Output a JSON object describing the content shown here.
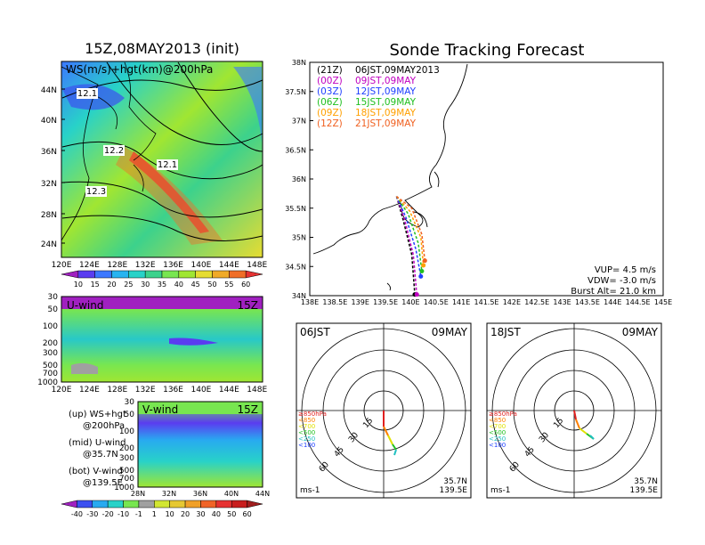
{
  "titles": {
    "left": "15Z,08MAY2013 (init)",
    "right": "Sonde Tracking Forecast"
  },
  "panel_ws": {
    "label": "WS(m/s)+hgt(km)@200hPa",
    "lat_ticks": [
      "44N",
      "40N",
      "36N",
      "32N",
      "28N",
      "24N"
    ],
    "lon_ticks": [
      "120E",
      "124E",
      "128E",
      "132E",
      "136E",
      "140E",
      "144E",
      "148E"
    ],
    "contour_labels": [
      "12.1",
      "12.2",
      "12.1",
      "12.3"
    ],
    "colorbar_ticks": [
      "10",
      "15",
      "20",
      "25",
      "30",
      "35",
      "40",
      "45",
      "50",
      "55",
      "60"
    ],
    "colorbar_colors": [
      "#a020c0",
      "#5a3cf0",
      "#3c78ff",
      "#28b4f0",
      "#28d2c8",
      "#3cd28c",
      "#78e650",
      "#a0e632",
      "#e6dc32",
      "#f0aa28",
      "#f06e28",
      "#e63232"
    ]
  },
  "panel_u": {
    "label": "U-wind",
    "time": "15Z",
    "p_ticks": [
      "30",
      "50",
      "100",
      "200",
      "300",
      "500",
      "700",
      "1000"
    ],
    "lon_ticks": [
      "120E",
      "124E",
      "128E",
      "132E",
      "136E",
      "140E",
      "144E",
      "148E"
    ]
  },
  "panel_v": {
    "label": "V-wind",
    "time": "15Z",
    "p_ticks": [
      "30",
      "50",
      "100",
      "200",
      "300",
      "500",
      "700",
      "1000"
    ],
    "lat_ticks": [
      "28N",
      "32N",
      "36N",
      "40N",
      "44N"
    ],
    "colorbar_ticks": [
      "-40",
      "-30",
      "-20",
      "-10",
      "-1",
      "1",
      "10",
      "20",
      "30",
      "40",
      "50",
      "60"
    ],
    "colorbar_colors": [
      "#a020c0",
      "#3c50f0",
      "#28aaf0",
      "#28d2c8",
      "#78e650",
      "#a0a0a0",
      "#d2e632",
      "#e6c832",
      "#f0a028",
      "#f06428",
      "#e63232",
      "#c81e1e",
      "#a01e1e"
    ]
  },
  "legend_notes": [
    {
      "line1": "(up) WS+hgt",
      "line2": "@200hPa"
    },
    {
      "line1": "(mid) U-wind",
      "line2": "@35.7N"
    },
    {
      "line1": "(bot) V-wind",
      "line2": "@139.5E"
    }
  ],
  "track_map": {
    "lat_ticks": [
      "38N",
      "37.5N",
      "37N",
      "36.5N",
      "36N",
      "35.5N",
      "35N",
      "34.5N",
      "34N"
    ],
    "lon_ticks": [
      "138E",
      "138.5E",
      "139E",
      "139.5E",
      "140E",
      "140.5E",
      "141E",
      "141.5E",
      "142E",
      "142.5E",
      "143E",
      "143.5E",
      "144E",
      "144.5E",
      "145E"
    ],
    "legend": [
      {
        "z": "(21Z)",
        "jst": "06JST,09MAY2013",
        "color": "#000000"
      },
      {
        "z": "(00Z)",
        "jst": "09JST,09MAY",
        "color": "#c000c0"
      },
      {
        "z": "(03Z)",
        "jst": "12JST,09MAY",
        "color": "#2040ff"
      },
      {
        "z": "(06Z)",
        "jst": "15JST,09MAY",
        "color": "#20c020"
      },
      {
        "z": "(09Z)",
        "jst": "18JST,09MAY",
        "color": "#ffa000"
      },
      {
        "z": "(12Z)",
        "jst": "21JST,09MAY",
        "color": "#f06020"
      }
    ],
    "params": [
      "VUP= 4.5 m/s",
      "VDW= -3.0 m/s",
      "Burst Alt= 21.0 km"
    ]
  },
  "hodographs": [
    {
      "time": "06JST",
      "date": "09MAY"
    },
    {
      "time": "18JST",
      "date": "09MAY"
    }
  ],
  "hodo_common": {
    "ring_labels": [
      "15",
      "30",
      "45",
      "60"
    ],
    "levels": [
      {
        "label": "≥850hPa",
        "color": "#e02020"
      },
      {
        "label": "<850",
        "color": "#ff8000"
      },
      {
        "label": "<700",
        "color": "#e0e000"
      },
      {
        "label": "<500",
        "color": "#20c020"
      },
      {
        "label": "<250",
        "color": "#20c0c0"
      },
      {
        "label": "<100",
        "color": "#2040ff"
      }
    ],
    "unit": "ms-1",
    "loc_lat": "35.7N",
    "loc_lon": "139.5E"
  },
  "chart_data": [
    {
      "type": "heatmap",
      "title": "WS(m/s)+hgt(km)@200hPa",
      "xlabel": "",
      "ylabel": "",
      "x_ticks": [
        "120E",
        "124E",
        "128E",
        "132E",
        "136E",
        "140E",
        "144E",
        "148E"
      ],
      "y_ticks": [
        "24N",
        "28N",
        "32N",
        "36N",
        "40N",
        "44N"
      ],
      "contour_labels_km": [
        12.1,
        12.2,
        12.1,
        12.3
      ],
      "colorbar": [
        10,
        15,
        20,
        25,
        30,
        35,
        40,
        45,
        50,
        55,
        60
      ]
    },
    {
      "type": "heatmap",
      "title": "U-wind",
      "x_ticks": [
        "120E",
        "124E",
        "128E",
        "132E",
        "136E",
        "140E",
        "144E",
        "148E"
      ],
      "y_ticks": [
        30,
        50,
        100,
        200,
        300,
        500,
        700,
        1000
      ]
    },
    {
      "type": "heatmap",
      "title": "V-wind",
      "x_ticks": [
        "28N",
        "32N",
        "36N",
        "40N",
        "44N"
      ],
      "y_ticks": [
        30,
        50,
        100,
        200,
        300,
        500,
        700,
        1000
      ],
      "colorbar": [
        -40,
        -30,
        -20,
        -10,
        -1,
        1,
        10,
        20,
        30,
        40,
        50,
        60
      ]
    },
    {
      "type": "line",
      "title": "Sonde Tracking Forecast",
      "xlim": [
        138,
        145
      ],
      "ylim": [
        34,
        38
      ],
      "series": [
        {
          "name": "06JST,09MAY2013",
          "x": [
            139.72,
            139.85,
            140.02,
            140.08
          ],
          "y": [
            35.7,
            35.3,
            34.7,
            34.02
          ]
        },
        {
          "name": "09JST,09MAY",
          "x": [
            139.72,
            139.88,
            140.05,
            140.12
          ],
          "y": [
            35.7,
            35.3,
            34.7,
            34.02
          ]
        },
        {
          "name": "12JST,09MAY",
          "x": [
            139.72,
            139.9,
            140.1,
            140.2
          ],
          "y": [
            35.7,
            35.35,
            34.8,
            34.33
          ]
        },
        {
          "name": "15JST,09MAY",
          "x": [
            139.72,
            139.95,
            140.15,
            140.22
          ],
          "y": [
            35.7,
            35.4,
            34.9,
            34.42
          ]
        },
        {
          "name": "18JST,09MAY",
          "x": [
            139.72,
            139.98,
            140.2,
            140.25
          ],
          "y": [
            35.7,
            35.45,
            35.0,
            34.52
          ]
        },
        {
          "name": "21JST,09MAY",
          "x": [
            139.72,
            140.02,
            140.22,
            140.28
          ],
          "y": [
            35.7,
            35.5,
            35.05,
            34.6
          ]
        }
      ]
    }
  ]
}
